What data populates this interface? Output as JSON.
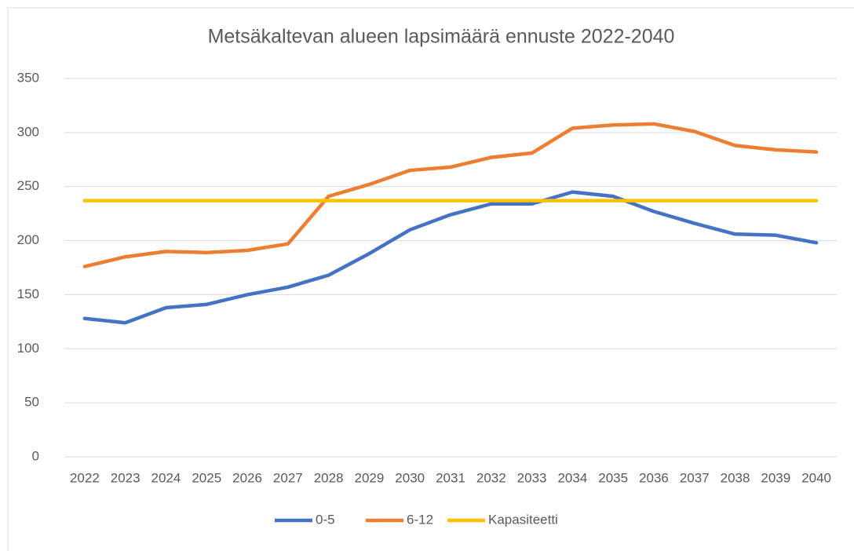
{
  "chart_data": {
    "type": "line",
    "title": "Metsäkaltevan alueen lapsimäärä ennuste 2022-2040",
    "categories": [
      "2022",
      "2023",
      "2024",
      "2025",
      "2026",
      "2027",
      "2028",
      "2029",
      "2030",
      "2031",
      "2032",
      "2033",
      "2034",
      "2035",
      "2036",
      "2037",
      "2038",
      "2039",
      "2040"
    ],
    "series": [
      {
        "name": "0-5",
        "color": "#4472c4",
        "values": [
          128,
          124,
          138,
          141,
          150,
          157,
          168,
          188,
          210,
          224,
          234,
          234,
          245,
          241,
          227,
          216,
          206,
          205,
          198
        ]
      },
      {
        "name": "6-12",
        "color": "#ed7d31",
        "values": [
          176,
          185,
          190,
          189,
          191,
          197,
          241,
          252,
          265,
          268,
          277,
          281,
          304,
          307,
          308,
          301,
          288,
          284,
          282
        ]
      },
      {
        "name": "Kapasiteetti",
        "color": "#ffc000",
        "values": [
          237,
          237,
          237,
          237,
          237,
          237,
          237,
          237,
          237,
          237,
          237,
          237,
          237,
          237,
          237,
          237,
          237,
          237,
          237
        ]
      }
    ],
    "ylim": [
      0,
      350
    ],
    "yticks": [
      0,
      50,
      100,
      150,
      200,
      250,
      300,
      350
    ],
    "grid": true,
    "legend": "bottom"
  }
}
